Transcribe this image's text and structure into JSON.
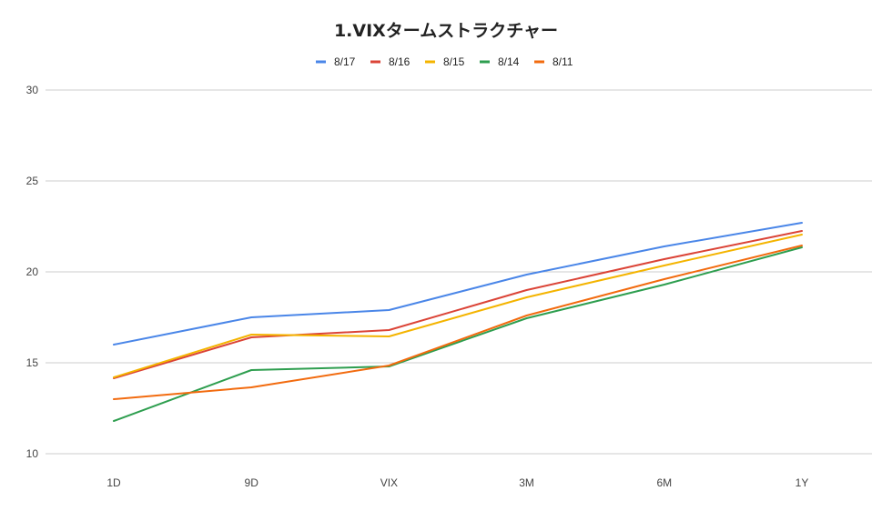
{
  "chart_data": {
    "type": "line",
    "title": "1.VIXタームストラクチャー",
    "xlabel": "",
    "ylabel": "",
    "categories": [
      "1D",
      "9D",
      "VIX",
      "3M",
      "6M",
      "1Y"
    ],
    "ylim": [
      10,
      30
    ],
    "yticks": [
      10,
      15,
      20,
      25,
      30
    ],
    "grid": true,
    "legend_position": "top",
    "series": [
      {
        "name": "8/17",
        "color": "#4a86e8",
        "values": [
          16.0,
          17.5,
          17.9,
          19.85,
          21.4,
          22.7
        ]
      },
      {
        "name": "8/16",
        "color": "#db4437",
        "values": [
          14.15,
          16.4,
          16.8,
          19.0,
          20.7,
          22.25
        ]
      },
      {
        "name": "8/15",
        "color": "#f4b400",
        "values": [
          14.2,
          16.55,
          16.45,
          18.6,
          20.35,
          22.05
        ]
      },
      {
        "name": "8/14",
        "color": "#2e9e4f",
        "values": [
          11.8,
          14.6,
          14.8,
          17.45,
          19.3,
          21.35
        ]
      },
      {
        "name": "8/11",
        "color": "#f26b0f",
        "values": [
          13.0,
          13.65,
          14.85,
          17.6,
          19.6,
          21.45
        ]
      }
    ]
  }
}
